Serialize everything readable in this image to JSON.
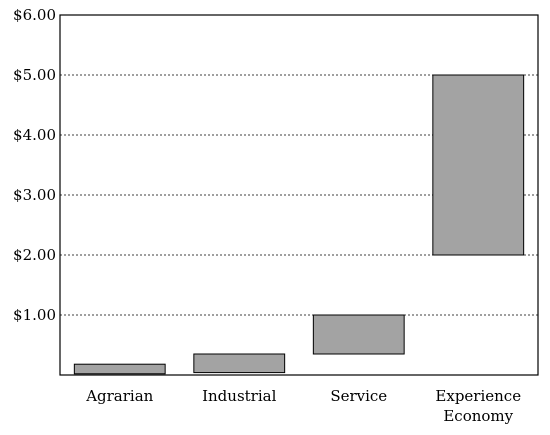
{
  "chart_data": {
    "type": "bar",
    "subtype": "floating-range",
    "title": "",
    "xlabel": "",
    "ylabel": "",
    "categories": [
      [
        "Agrarian"
      ],
      [
        "Industrial"
      ],
      [
        "Service"
      ],
      [
        "Experience",
        "Economy"
      ]
    ],
    "ranges": [
      [
        0.02,
        0.18
      ],
      [
        0.04,
        0.35
      ],
      [
        0.35,
        1.0
      ],
      [
        2.0,
        5.0
      ]
    ],
    "ylim": [
      0,
      6
    ],
    "y_ticks": [
      1,
      2,
      3,
      4,
      5,
      6
    ],
    "y_tick_labels": [
      "$1.00",
      "$2.00",
      "$3.00",
      "$4.00",
      "$5.00",
      "$6.00"
    ],
    "grid": "horizontal-dashed",
    "legend": "none",
    "bar_color": "#a3a3a3",
    "bar_outline_color": "#000000"
  }
}
